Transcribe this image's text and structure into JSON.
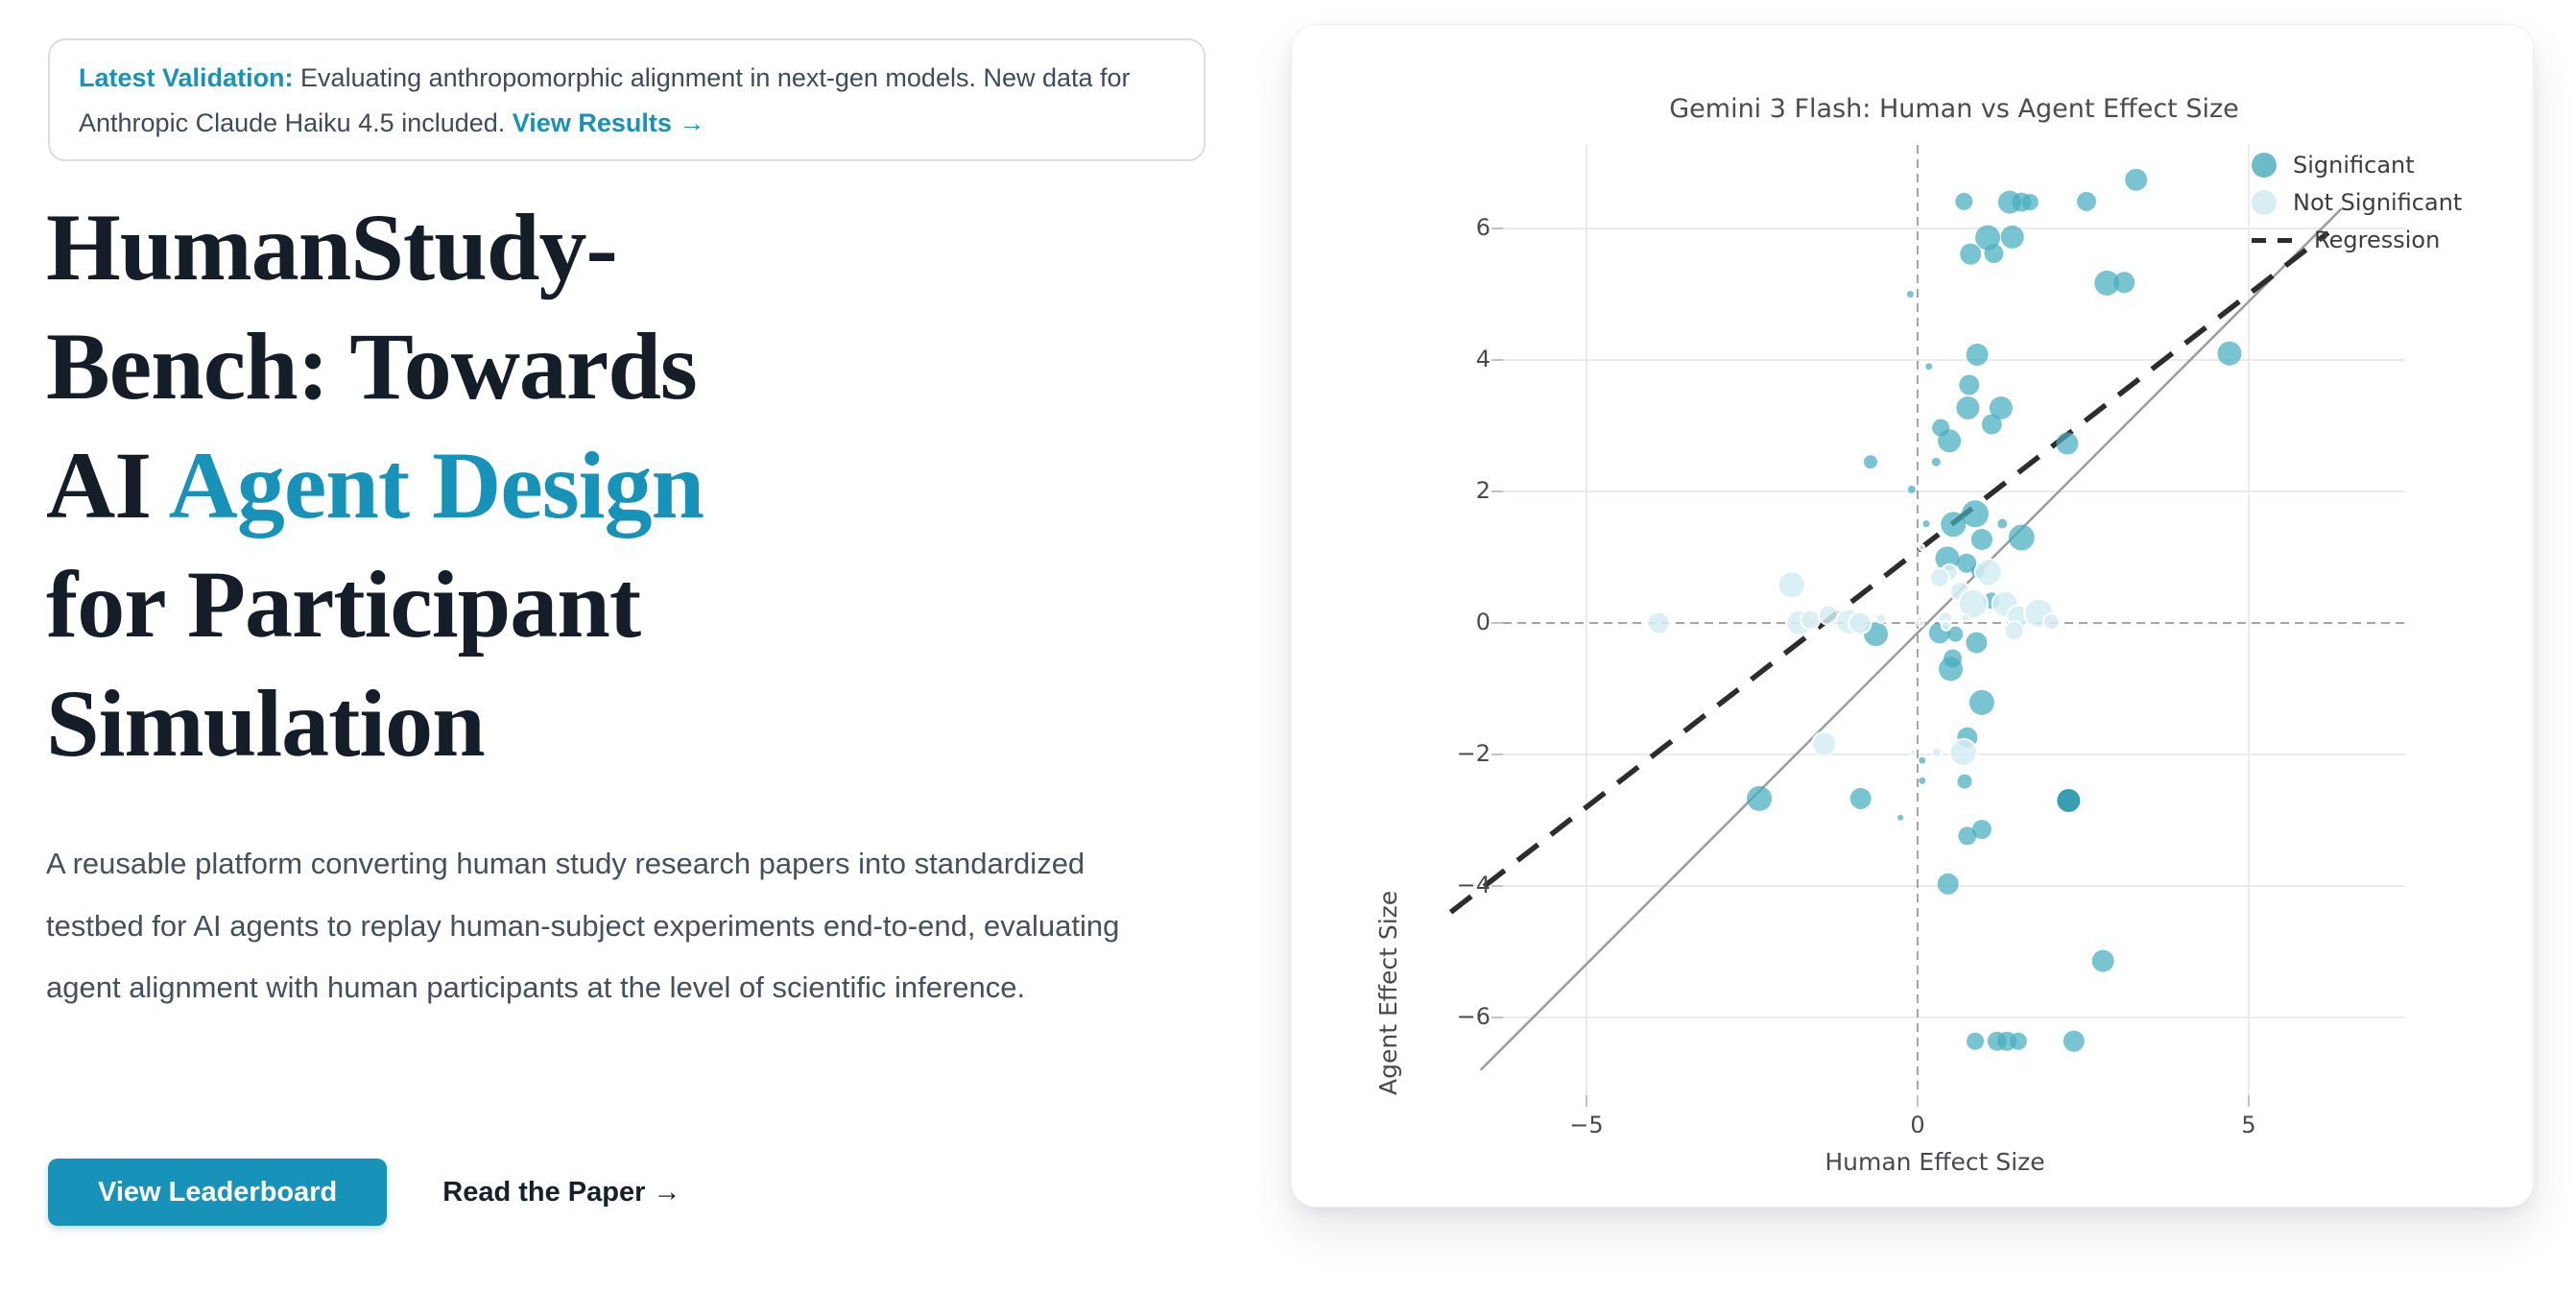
{
  "banner": {
    "highlight": "Latest Validation:",
    "text": " Evaluating anthropomorphic alignment in next-gen models. New data for Anthropic Claude Haiku 4.5 included. ",
    "link": "View Results →"
  },
  "hero": {
    "title_lines": [
      {
        "pre": "HumanStudy-"
      },
      {
        "pre": "Bench: Towards"
      },
      {
        "pre": "AI ",
        "accent": "Agent Design"
      },
      {
        "pre": "for Participant"
      },
      {
        "pre": "Simulation"
      }
    ],
    "description": "A reusable platform converting human study research papers into standardized testbed for AI agents to replay human-subject experiments end-to-end, evaluating agent alignment with human participants at the level of scientific inference.",
    "primary_cta": "View Leaderboard",
    "secondary_cta": "Read the Paper →"
  },
  "colors": {
    "accent_teal": "#1793ba",
    "heading_navy": "#141d28",
    "significant": "#45adbf",
    "significant_dark": "#2796aa",
    "not_significant": "#d5edf3",
    "regression_line": "#2d2d2d",
    "identity_line": "#9c9c9c",
    "gridline": "#ebebeb",
    "zeroline": "#a6a6a6"
  },
  "chart_data": {
    "type": "scatter",
    "title": "Gemini 3 Flash: Human vs Agent Effect Size",
    "xlabel": "Human Effect Size",
    "ylabel": "Agent Effect Size",
    "xlim": [
      -6.3,
      7.4
    ],
    "ylim": [
      -7.2,
      7.3
    ],
    "xticks": [
      -5,
      0,
      5
    ],
    "yticks": [
      6,
      4,
      2,
      0,
      -2,
      -4,
      -6
    ],
    "grid": true,
    "legend": {
      "position": "top-right",
      "entries": [
        {
          "label": "Significant",
          "marker": "circle",
          "color": "#6bbcc9"
        },
        {
          "label": "Not Significant",
          "marker": "circle",
          "color": "#d9eef3"
        },
        {
          "label": "Regression",
          "marker": "dashed-line",
          "color": "#2d2d2d"
        }
      ]
    },
    "identity_line": {
      "x1": -6.6,
      "y1": -6.8,
      "x2": 6.4,
      "y2": 6.3,
      "style": "solid"
    },
    "regression_line": {
      "slope": 0.78,
      "intercept": 1.1,
      "x1": -7.05,
      "x2": 6.2,
      "style": "dashed"
    },
    "series": [
      {
        "name": "Significant",
        "points": [
          [
            0.7,
            6.41,
            9
          ],
          [
            1.39,
            6.4,
            12
          ],
          [
            1.57,
            6.4,
            10
          ],
          [
            1.7,
            6.4,
            8.5
          ],
          [
            2.55,
            6.41,
            10
          ],
          [
            3.3,
            6.74,
            11.5
          ],
          [
            1.06,
            5.86,
            13
          ],
          [
            1.43,
            5.87,
            12
          ],
          [
            0.8,
            5.61,
            11
          ],
          [
            1.15,
            5.62,
            10
          ],
          [
            2.86,
            5.17,
            13
          ],
          [
            3.12,
            5.18,
            11
          ],
          [
            -0.11,
            5.0,
            3.5
          ],
          [
            4.71,
            4.1,
            12.5
          ],
          [
            0.9,
            4.08,
            11.5
          ],
          [
            0.17,
            3.9,
            3.5
          ],
          [
            0.78,
            3.62,
            10.5
          ],
          [
            0.76,
            3.27,
            12
          ],
          [
            1.26,
            3.27,
            12
          ],
          [
            1.12,
            3.02,
            10.5
          ],
          [
            0.35,
            2.97,
            9
          ],
          [
            0.48,
            2.77,
            12
          ],
          [
            2.26,
            2.73,
            11.5
          ],
          [
            -0.71,
            2.45,
            7
          ],
          [
            0.28,
            2.45,
            4.5
          ],
          [
            -0.09,
            2.03,
            4
          ],
          [
            0.13,
            1.51,
            3.5
          ],
          [
            0.54,
            1.5,
            13
          ],
          [
            0.87,
            1.66,
            14
          ],
          [
            1.28,
            1.51,
            5
          ],
          [
            0.97,
            1.27,
            11
          ],
          [
            1.57,
            1.3,
            13.5
          ],
          [
            0.45,
            0.98,
            12.5
          ],
          [
            0.74,
            0.91,
            10
          ],
          [
            0.91,
            0.79,
            7
          ],
          [
            1.12,
            0.34,
            8.5
          ],
          [
            0.33,
            -0.15,
            11
          ],
          [
            0.57,
            -0.17,
            8
          ],
          [
            0.89,
            -0.3,
            11
          ],
          [
            -0.63,
            -0.17,
            12.5
          ],
          [
            0.53,
            -0.54,
            9.5
          ],
          [
            0.5,
            -0.7,
            12.5
          ],
          [
            0.97,
            -1.21,
            13
          ],
          [
            0.75,
            -1.74,
            10.5
          ],
          [
            0.07,
            -2.09,
            3.5
          ],
          [
            0.07,
            -2.4,
            3.5
          ],
          [
            0.71,
            -2.41,
            7.5
          ],
          [
            -2.39,
            -2.67,
            13
          ],
          [
            -0.86,
            -2.67,
            11
          ],
          [
            -0.26,
            -2.96,
            3
          ],
          [
            0.75,
            -3.24,
            9.5
          ],
          [
            0.97,
            -3.14,
            10
          ],
          [
            0.46,
            -3.97,
            11
          ],
          [
            2.8,
            -5.14,
            11.5
          ],
          [
            0.87,
            -6.36,
            9
          ],
          [
            1.2,
            -6.36,
            10
          ],
          [
            1.35,
            -6.36,
            10
          ],
          [
            1.52,
            -6.36,
            9
          ],
          [
            2.36,
            -6.36,
            11
          ]
        ]
      },
      {
        "name": "Significant (emphasis)",
        "points": [
          [
            2.28,
            -2.7,
            12
          ]
        ]
      },
      {
        "name": "Not Significant",
        "points": [
          [
            -3.91,
            0.0,
            11.5
          ],
          [
            -1.9,
            0.58,
            14
          ],
          [
            -1.79,
            0.0,
            13
          ],
          [
            -1.62,
            0.05,
            10
          ],
          [
            -1.35,
            0.12,
            10
          ],
          [
            -1.04,
            0.02,
            13
          ],
          [
            -0.87,
            0.0,
            11.5
          ],
          [
            -0.55,
            0.07,
            5
          ],
          [
            0.06,
            1.15,
            3
          ],
          [
            0.48,
            0.77,
            8.5
          ],
          [
            0.33,
            0.69,
            10
          ],
          [
            1.07,
            0.77,
            14
          ],
          [
            0.64,
            0.48,
            10
          ],
          [
            0.84,
            0.29,
            15
          ],
          [
            1.32,
            0.29,
            13.5
          ],
          [
            1.52,
            0.1,
            11.5
          ],
          [
            1.83,
            0.15,
            15
          ],
          [
            2.02,
            0.02,
            8.5
          ],
          [
            0.42,
            0.07,
            7
          ],
          [
            0.72,
            0.08,
            4
          ],
          [
            0.03,
            0.06,
            3
          ],
          [
            0.05,
            -0.01,
            3
          ],
          [
            1.46,
            -0.12,
            10
          ],
          [
            0.43,
            -0.04,
            5
          ],
          [
            0.69,
            -1.97,
            14
          ],
          [
            0.29,
            -1.97,
            5
          ],
          [
            -0.07,
            -1.97,
            3
          ],
          [
            -1.41,
            -1.84,
            12.5
          ]
        ]
      }
    ]
  }
}
